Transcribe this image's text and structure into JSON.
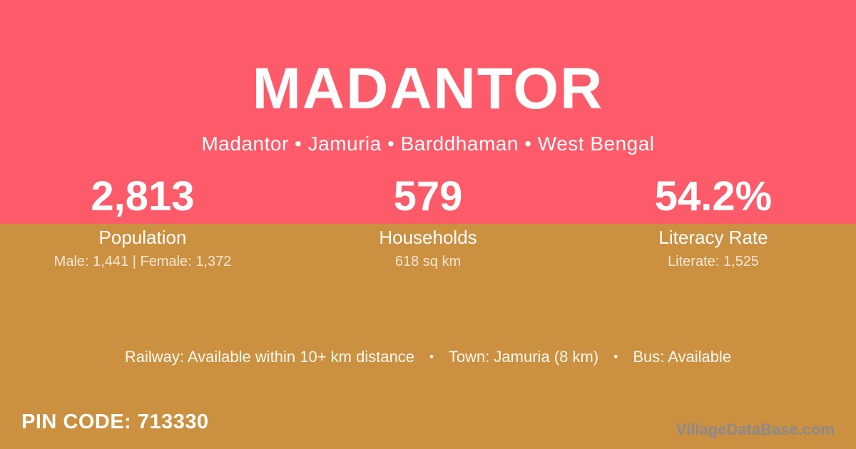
{
  "colors": {
    "header_bg": "#fd5b6a",
    "body_bg": "#cb9040",
    "text": "#ffffff",
    "muted_text": "rgba(255,255,255,0.78)",
    "watermark_text": "#8a8a90"
  },
  "header": {
    "title": "MADANTOR",
    "breadcrumb": "Madantor • Jamuria • Barddhaman • West Bengal"
  },
  "stats": [
    {
      "value": "2,813",
      "label": "Population",
      "detail": "Male: 1,441 | Female: 1,372"
    },
    {
      "value": "579",
      "label": "Households",
      "detail": "618 sq km"
    },
    {
      "value": "54.2%",
      "label": "Literacy Rate",
      "detail": "Literate: 1,525"
    }
  ],
  "transport": {
    "separator": "•",
    "items": [
      "Railway: Available within 10+ km distance",
      "Town: Jamuria (8 km)",
      "Bus: Available"
    ]
  },
  "footer": {
    "pin_code": "PIN CODE: 713330",
    "watermark": "VillageDataBase.com"
  }
}
